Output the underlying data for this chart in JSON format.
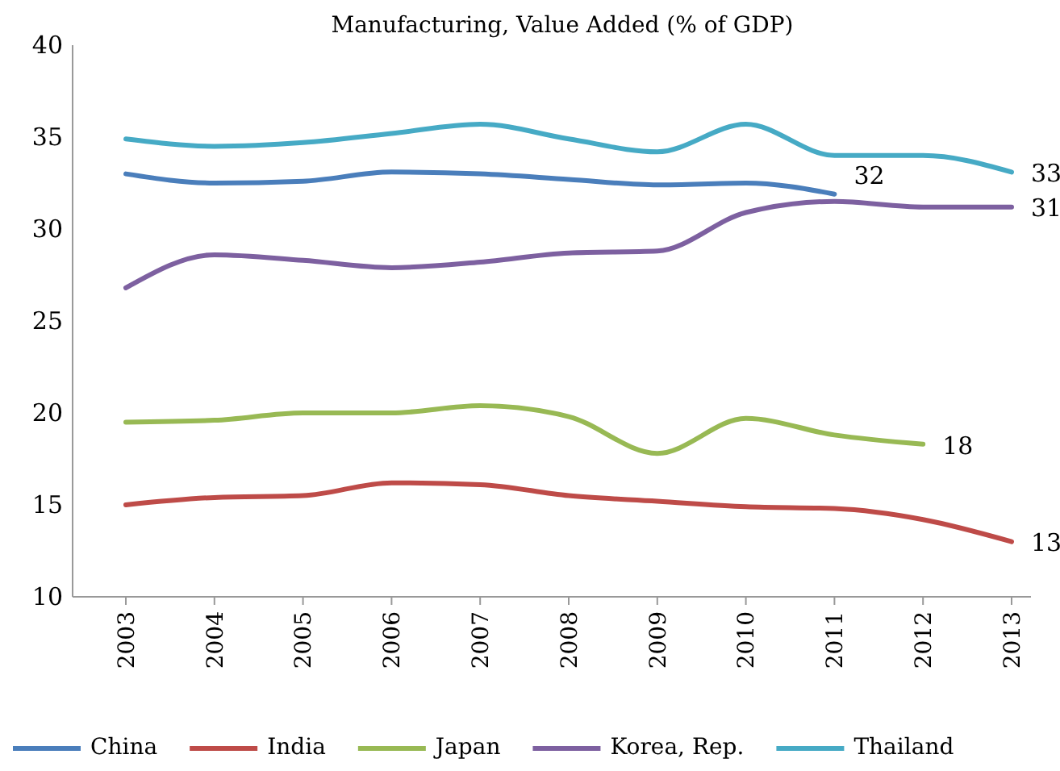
{
  "chart_data": {
    "type": "line",
    "title": "Manufacturing, Value Added (% of GDP)",
    "categories": [
      "2003",
      "2004",
      "2005",
      "2006",
      "2007",
      "2008",
      "2009",
      "2010",
      "2011",
      "2012",
      "2013"
    ],
    "ylim": [
      10,
      40
    ],
    "yticks": [
      10,
      15,
      20,
      25,
      30,
      35,
      40
    ],
    "legend": "bottom",
    "series": [
      {
        "name": "China",
        "color": "#4a7ebb",
        "values": [
          33.0,
          32.5,
          32.6,
          33.1,
          33.0,
          32.7,
          32.4,
          32.5,
          31.9,
          null,
          null
        ],
        "value_labels": [
          null,
          null,
          null,
          null,
          null,
          null,
          null,
          null,
          "32",
          null,
          null
        ]
      },
      {
        "name": "India",
        "color": "#be4b48",
        "values": [
          15.0,
          15.4,
          15.5,
          16.2,
          16.1,
          15.5,
          15.2,
          14.9,
          14.8,
          14.2,
          13.0
        ],
        "value_labels": [
          null,
          null,
          null,
          null,
          null,
          null,
          null,
          null,
          null,
          null,
          "13"
        ]
      },
      {
        "name": "Japan",
        "color": "#98b954",
        "values": [
          19.5,
          19.6,
          20.0,
          20.0,
          20.4,
          19.8,
          17.8,
          19.7,
          18.8,
          18.3,
          null
        ],
        "value_labels": [
          null,
          null,
          null,
          null,
          null,
          null,
          null,
          null,
          null,
          "18",
          null
        ]
      },
      {
        "name": "Korea, Rep.",
        "color": "#7d60a0",
        "values": [
          26.8,
          28.6,
          28.3,
          27.9,
          28.2,
          28.7,
          28.8,
          30.9,
          31.5,
          31.2,
          31.2
        ],
        "value_labels": [
          null,
          null,
          null,
          null,
          null,
          null,
          null,
          null,
          null,
          null,
          "31"
        ]
      },
      {
        "name": "Thailand",
        "color": "#46aac5",
        "values": [
          34.9,
          34.5,
          34.7,
          35.2,
          35.7,
          34.9,
          34.2,
          35.7,
          34.0,
          34.0,
          33.1
        ],
        "value_labels": [
          null,
          null,
          null,
          null,
          null,
          null,
          null,
          null,
          null,
          null,
          "33"
        ]
      }
    ]
  }
}
